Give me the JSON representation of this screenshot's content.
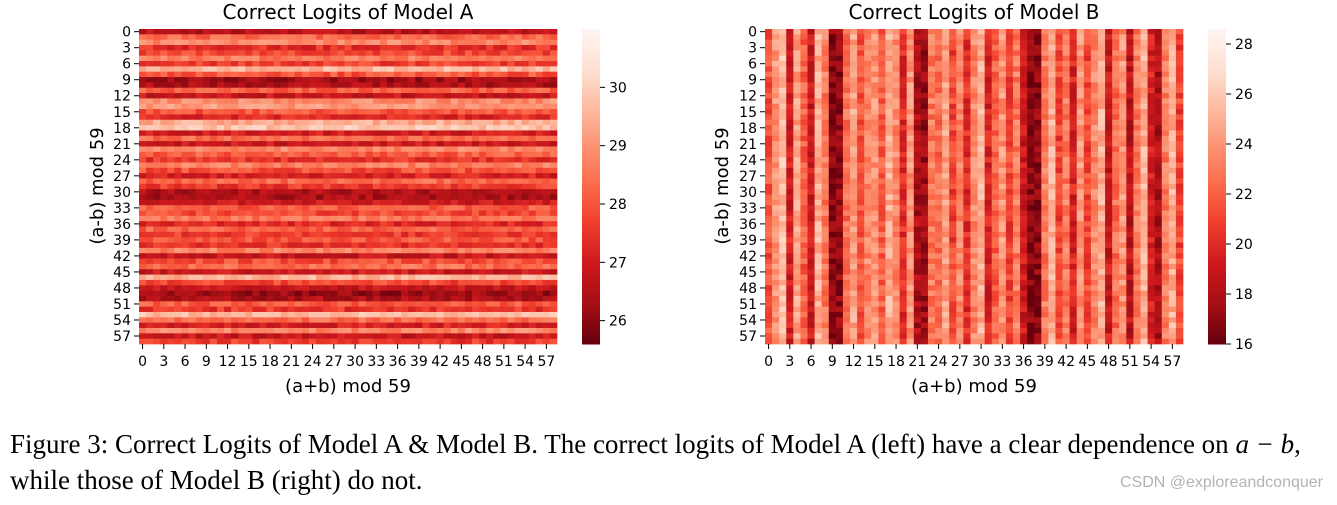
{
  "chart_data": [
    {
      "type": "heatmap",
      "title": "Correct Logits of Model A",
      "xlabel": "(a+b) mod 59",
      "ylabel": "(a-b) mod 59",
      "rows": 59,
      "cols": 59,
      "x_tick_labels": [
        "0",
        "3",
        "6",
        "9",
        "12",
        "15",
        "18",
        "21",
        "24",
        "27",
        "30",
        "33",
        "36",
        "39",
        "42",
        "45",
        "48",
        "51",
        "54",
        "57"
      ],
      "y_tick_labels": [
        "0",
        "3",
        "6",
        "9",
        "12",
        "15",
        "18",
        "21",
        "24",
        "27",
        "30",
        "33",
        "36",
        "39",
        "42",
        "45",
        "48",
        "51",
        "54",
        "57"
      ],
      "colorbar": {
        "min": 25.6,
        "max": 31.0,
        "ticks": [
          26,
          27,
          28,
          29,
          30
        ]
      },
      "colormap": "Reds",
      "pattern": "row-dependent",
      "row_means": [
        26.6,
        28.3,
        28.8,
        27.4,
        27.8,
        28.6,
        27.7,
        29.6,
        28.0,
        26.3,
        26.5,
        28.2,
        26.8,
        28.9,
        29.1,
        28.0,
        27.3,
        29.4,
        29.8,
        27.0,
        28.4,
        26.9,
        28.8,
        28.1,
        27.5,
        28.7,
        27.9,
        27.1,
        28.3,
        27.6,
        26.5,
        26.4,
        26.9,
        28.1,
        27.8,
        28.5,
        27.3,
        28.2,
        27.6,
        28.0,
        27.4,
        28.7,
        26.8,
        27.9,
        28.4,
        26.9,
        29.5,
        27.8,
        26.8,
        26.2,
        26.5,
        28.1,
        27.5,
        29.7,
        28.4,
        27.1,
        28.8,
        26.8,
        27.6
      ]
    },
    {
      "type": "heatmap",
      "title": "Correct Logits of Model B",
      "xlabel": "(a+b) mod 59",
      "ylabel": "(a-b) mod 59",
      "rows": 59,
      "cols": 59,
      "x_tick_labels": [
        "0",
        "3",
        "6",
        "9",
        "12",
        "15",
        "18",
        "21",
        "24",
        "27",
        "30",
        "33",
        "36",
        "39",
        "42",
        "45",
        "48",
        "51",
        "54",
        "57"
      ],
      "y_tick_labels": [
        "0",
        "3",
        "6",
        "9",
        "12",
        "15",
        "18",
        "21",
        "24",
        "27",
        "30",
        "33",
        "36",
        "39",
        "42",
        "45",
        "48",
        "51",
        "54",
        "57"
      ],
      "colorbar": {
        "min": 16.0,
        "max": 28.6,
        "ticks": [
          16,
          18,
          20,
          22,
          24,
          26,
          28
        ]
      },
      "colormap": "Reds",
      "pattern": "column-dependent",
      "col_means": [
        21.5,
        24.0,
        25.5,
        19.5,
        24.5,
        22.0,
        19.0,
        25.0,
        23.0,
        16.8,
        17.2,
        22.5,
        24.5,
        21.5,
        23.5,
        24.0,
        22.0,
        25.0,
        23.5,
        20.0,
        24.0,
        18.0,
        17.5,
        23.0,
        22.5,
        24.5,
        21.0,
        23.5,
        20.0,
        23.5,
        25.0,
        19.5,
        22.0,
        24.0,
        21.0,
        23.0,
        19.0,
        16.8,
        17.0,
        23.0,
        25.0,
        21.0,
        23.0,
        19.5,
        24.0,
        21.0,
        23.5,
        25.0,
        19.0,
        22.5,
        24.0,
        18.5,
        23.0,
        25.0,
        19.5,
        18.0,
        23.0,
        25.0,
        21.0
      ]
    }
  ],
  "caption": {
    "part1": "Figure 3: Correct Logits of Model A & Model B. The correct logits of Model A (left) have a clear dependence on ",
    "math": "a − b",
    "part2": ", while those of Model B (right) do not."
  },
  "watermark": "CSDN @exploreandconquer"
}
